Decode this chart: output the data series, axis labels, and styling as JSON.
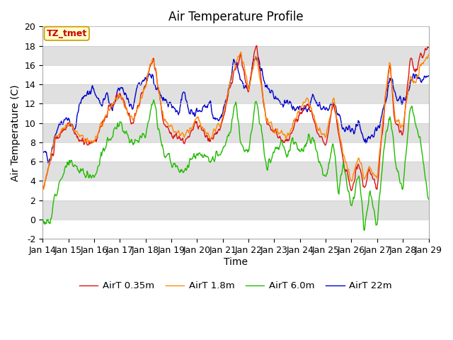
{
  "title": "Air Temperature Profile",
  "xlabel": "Time",
  "ylabel": "Air Temperature (C)",
  "ylim": [
    -2,
    20
  ],
  "x_tick_labels": [
    "Jan 14",
    "Jan 15",
    "Jan 16",
    "Jan 17",
    "Jan 18",
    "Jan 19",
    "Jan 20",
    "Jan 21",
    "Jan 22",
    "Jan 23",
    "Jan 24",
    "Jan 25",
    "Jan 26",
    "Jan 27",
    "Jan 28",
    "Jan 29"
  ],
  "annotation_text": "TZ_tmet",
  "annotation_color": "#cc0000",
  "annotation_bg": "#ffffcc",
  "annotation_edge": "#cc9900",
  "line_colors": [
    "#dd1111",
    "#ff8800",
    "#22bb00",
    "#0000cc"
  ],
  "line_labels": [
    "AirT 0.35m",
    "AirT 1.8m",
    "AirT 6.0m",
    "AirT 22m"
  ],
  "bg_band_color": "#e0e0e0",
  "title_fontsize": 12,
  "label_fontsize": 10,
  "tick_fontsize": 9
}
